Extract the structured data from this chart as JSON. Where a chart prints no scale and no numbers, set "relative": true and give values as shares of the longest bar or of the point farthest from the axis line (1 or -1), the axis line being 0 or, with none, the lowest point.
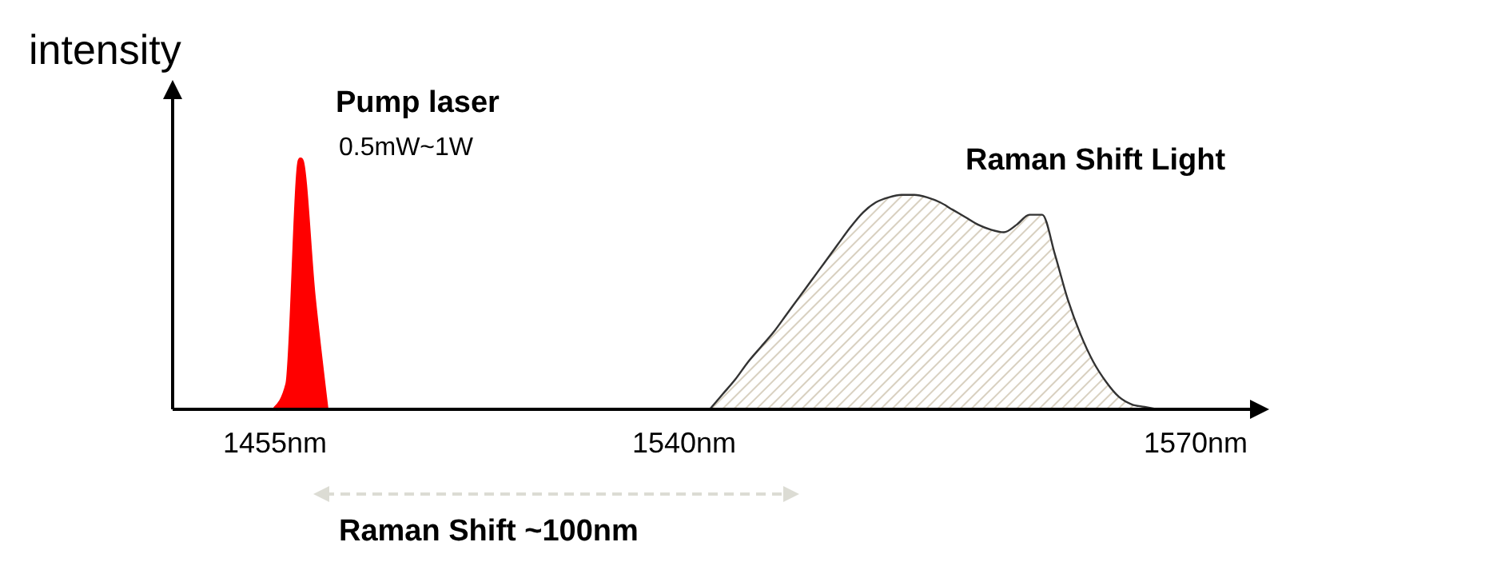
{
  "chart_data": {
    "type": "area",
    "relative": true,
    "ylabel": "intensity",
    "categories": [
      null,
      null,
      null,
      null,
      null,
      null,
      null,
      null,
      "1455nm",
      null,
      null,
      null,
      null,
      null,
      null,
      null,
      null,
      null,
      null,
      null,
      null,
      null,
      null,
      null,
      null,
      null,
      null,
      null,
      null,
      null,
      null,
      null,
      null,
      null,
      null,
      null,
      null,
      null,
      null,
      null,
      "1540nm",
      null,
      null,
      null,
      null,
      null,
      null,
      null,
      null,
      null,
      null,
      null,
      null,
      null,
      null,
      null,
      null,
      null,
      null,
      null,
      null,
      null,
      null,
      null,
      null,
      null,
      null,
      null,
      null,
      null,
      null,
      null,
      null,
      null,
      null,
      null,
      null,
      null,
      null,
      null,
      "1570nm",
      null,
      null,
      null,
      null
    ],
    "series": [
      {
        "name": "Pump laser",
        "color": "#ff0000",
        "values": [
          null,
          null,
          null,
          null,
          null,
          null,
          null,
          null,
          0,
          0.1,
          1,
          0.45,
          0,
          null,
          null,
          null,
          null,
          null,
          null,
          null,
          null,
          null,
          null,
          null,
          null,
          null,
          null,
          null,
          null,
          null,
          null,
          null,
          null,
          null,
          null,
          null,
          null,
          null,
          null,
          null,
          null,
          null,
          null,
          null,
          null,
          null,
          null,
          null,
          null,
          null,
          null,
          null,
          null,
          null,
          null,
          null,
          null,
          null,
          null,
          null,
          null,
          null,
          null,
          null,
          null,
          null,
          null,
          null,
          null,
          null,
          null,
          null,
          null,
          null,
          null,
          null,
          null,
          null,
          null,
          null,
          null,
          null,
          null,
          null,
          null
        ]
      },
      {
        "name": "Raman Shift Light",
        "color": "#d8d0c0",
        "values": [
          null,
          null,
          null,
          null,
          null,
          null,
          null,
          null,
          null,
          null,
          null,
          null,
          null,
          null,
          null,
          null,
          null,
          null,
          null,
          null,
          null,
          null,
          null,
          null,
          null,
          null,
          null,
          null,
          null,
          null,
          null,
          null,
          null,
          null,
          null,
          null,
          null,
          null,
          null,
          null,
          null,
          null,
          0,
          0.06,
          0.12,
          0.19,
          0.25,
          0.31,
          0.38,
          0.45,
          0.52,
          0.59,
          0.66,
          0.73,
          0.79,
          0.83,
          0.85,
          0.86,
          0.86,
          0.85,
          0.83,
          0.8,
          0.77,
          0.74,
          0.72,
          0.71,
          0.74,
          0.78,
          0.78,
          0.62,
          0.44,
          0.3,
          0.19,
          0.11,
          0.05,
          0.02,
          0.01,
          0,
          null,
          null,
          null,
          null,
          null,
          null,
          null
        ]
      }
    ],
    "annotations": [
      "0.5mW~1W",
      "Raman Shift ~100nm"
    ]
  }
}
